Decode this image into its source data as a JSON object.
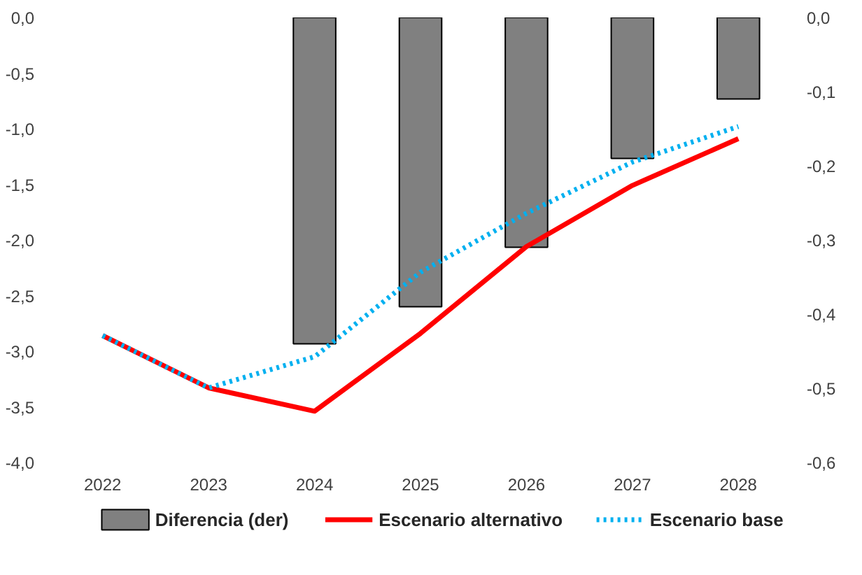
{
  "chart_data": {
    "type": "line",
    "categories": [
      "2022",
      "2023",
      "2024",
      "2025",
      "2026",
      "2027",
      "2028"
    ],
    "series": [
      {
        "name": "Diferencia (der)",
        "type": "bar",
        "axis": "y2",
        "color": "#808080",
        "values": [
          null,
          null,
          -0.44,
          -0.39,
          -0.31,
          -0.19,
          -0.11
        ]
      },
      {
        "name": "Escenario alternativo",
        "color": "#ff0000",
        "line_style": "solid",
        "values": [
          -2.86,
          -3.33,
          -3.54,
          -2.84,
          -2.06,
          -1.51,
          -1.09
        ]
      },
      {
        "name": "Escenario base",
        "color": "#00b0f0",
        "line_style": "dotted",
        "values": [
          -2.86,
          -3.33,
          -3.05,
          -2.29,
          -1.76,
          -1.3,
          -0.98
        ]
      }
    ],
    "ylim": [
      -4.0,
      0.0
    ],
    "yticks": [
      {
        "value": 0,
        "label": "0,0"
      },
      {
        "value": -0.5,
        "label": "-0,5"
      },
      {
        "value": -1,
        "label": "-1,0"
      },
      {
        "value": -1.5,
        "label": "-1,5"
      },
      {
        "value": -2,
        "label": "-2,0"
      },
      {
        "value": -2.5,
        "label": "-2,5"
      },
      {
        "value": -3,
        "label": "-3,0"
      },
      {
        "value": -3.5,
        "label": "-3,5"
      },
      {
        "value": -4,
        "label": "-4,0"
      }
    ],
    "y2lim": [
      -0.6,
      0.0
    ],
    "y2ticks": [
      {
        "value": 0,
        "label": "0,0"
      },
      {
        "value": -0.1,
        "label": "-0,1"
      },
      {
        "value": -0.2,
        "label": "-0,2"
      },
      {
        "value": -0.3,
        "label": "-0,3"
      },
      {
        "value": -0.4,
        "label": "-0,4"
      },
      {
        "value": -0.5,
        "label": "-0,5"
      },
      {
        "value": -0.6,
        "label": "-0,6"
      }
    ],
    "grid": false,
    "legend": "bottom"
  }
}
